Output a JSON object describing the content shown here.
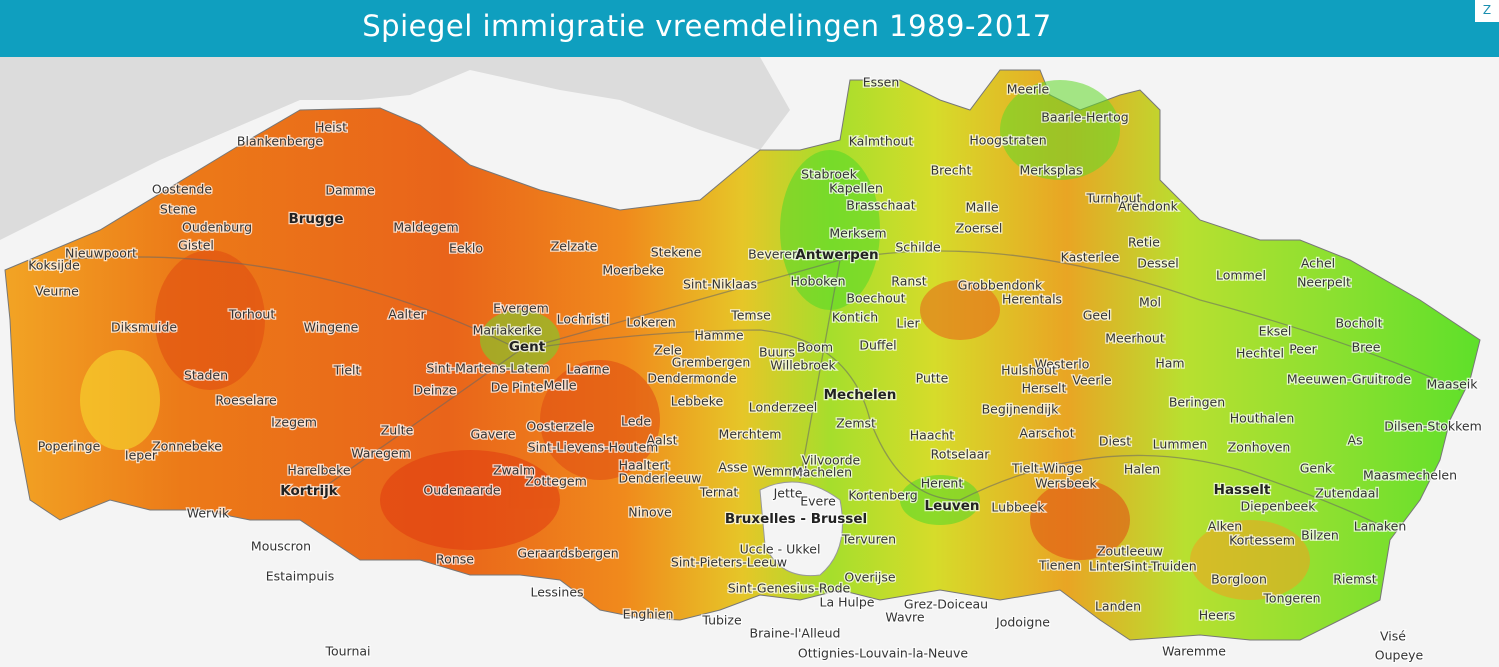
{
  "header": {
    "title": "Spiegel immigratie vreemdelingen 1989-2017",
    "zoom": "Z"
  },
  "map": {
    "cities": [
      "Brugge",
      "Gent",
      "Antwerpen",
      "Mechelen",
      "Leuven",
      "Hasselt",
      "Kortrijk",
      "Bruxelles - Brussel"
    ],
    "places": [
      "Essen",
      "Meerle",
      "Baarle-Hertog",
      "Heist",
      "Blankenberge",
      "Kalmthout",
      "Hoogstraten",
      "Brecht",
      "Merksplas",
      "Oostende",
      "Damme",
      "Stabroek",
      "Kapellen",
      "Brasschaat",
      "Turnhout",
      "Arendonk",
      "Malle",
      "Stene",
      "Oudenburg",
      "Maldegem",
      "Zoersel",
      "Eeklo",
      "Zelzate",
      "Merksem",
      "Schilde",
      "Retie",
      "Gistel",
      "Nieuwpoort",
      "Stekene",
      "Beveren",
      "Kasterlee",
      "Dessel",
      "Koksijde",
      "Moerbeke",
      "Lommel",
      "Achel",
      "Neerpelt",
      "Ranst",
      "Sint-Niklaas",
      "Hoboken",
      "Grobbendonk",
      "Veurne",
      "Boechout",
      "Herentals",
      "Evergem",
      "Lochristi",
      "Torhout",
      "Aalter",
      "Temse",
      "Geel",
      "Mol",
      "Kontich",
      "Lier",
      "Bocholt",
      "Diksmuide",
      "Wingene",
      "Mariakerke",
      "Lokeren",
      "Eksel",
      "Hamme",
      "Meerhout",
      "Zele",
      "Boom",
      "Duffel",
      "Hechtel",
      "Peer",
      "Bree",
      "Buurs",
      "Grembergen",
      "Sint-Martens-Latem",
      "Tielt",
      "Laarne",
      "Dendermonde",
      "Willebroek",
      "Westerlo",
      "Ham",
      "Hulshout",
      "Staden",
      "Putte",
      "Meeuwen-Gruitrode",
      "Maaseik",
      "Deinze",
      "De Pinte",
      "Melle",
      "Herselt",
      "Veerle",
      "Roeselare",
      "Lebbeke",
      "Beringen",
      "Houthalen",
      "Londerzeel",
      "Begijnendijk",
      "Izegem",
      "Lede",
      "Zemst",
      "Dilsen-Stokkem",
      "Zulte",
      "Oosterzele",
      "Aarschot",
      "Merchtem",
      "Haacht",
      "Gavere",
      "Diest",
      "Lummen",
      "Aalst",
      "Zonhoven",
      "As",
      "Poperinge",
      "Ieper",
      "Zonnebeke",
      "Sint-Lievens-Houtem",
      "Waregem",
      "Rotselaar",
      "Vilvoorde",
      "Haaltert",
      "Tielt-Winge",
      "Halen",
      "Genk",
      "Maasmechelen",
      "Asse",
      "Wemmel",
      "Machelen",
      "Harelbeke",
      "Zwalm",
      "Denderleeuw",
      "Wersbeek",
      "Herent",
      "Zottegem",
      "Zutendaal",
      "Oudenaarde",
      "Ternat",
      "Jette",
      "Evere",
      "Kortenberg",
      "Diepenbeek",
      "Wervik",
      "Lubbeek",
      "Lanaken",
      "Ninove",
      "Alken",
      "Kortessem",
      "Bilzen",
      "Mouscron",
      "Tervuren",
      "Uccle - Ukkel",
      "Geraardsbergen",
      "Zoutleeuw",
      "Estaimpuis",
      "Ronse",
      "Sint-Pieters-Leeuw",
      "Tienen",
      "Linter",
      "Sint-Truiden",
      "Riemst",
      "Borgloon",
      "Overijse",
      "Sint-Genesius-Rode",
      "Lessines",
      "Tongeren",
      "La Hulpe",
      "Grez-Doiceau",
      "Landen",
      "Enghien",
      "Wavre",
      "Heers",
      "Tubize",
      "Jodoigne",
      "Braine-l'Alleud",
      "Visé",
      "Tournai",
      "Waremme",
      "Ottignies-Louvain-la-Neuve",
      "Oupeye"
    ]
  }
}
